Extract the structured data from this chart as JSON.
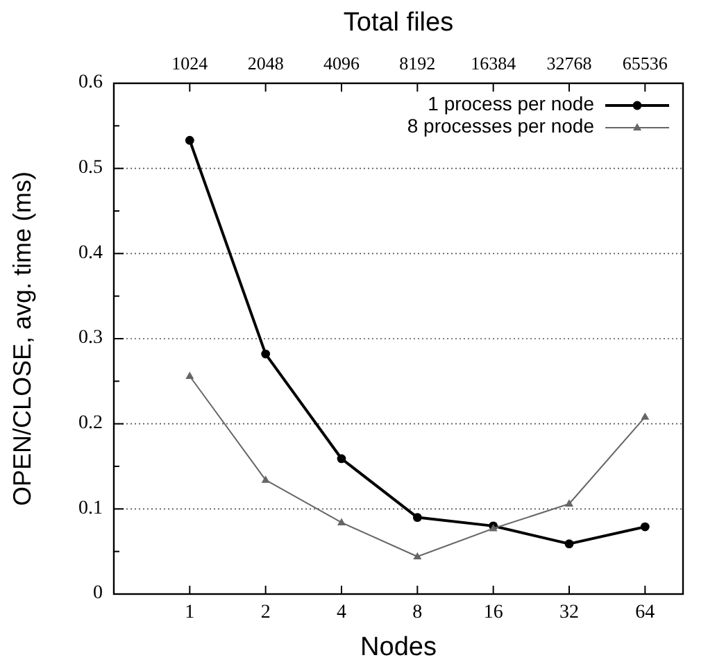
{
  "chart_data": {
    "type": "line",
    "xlabel": "Nodes",
    "ylabel": "OPEN/CLOSE, avg. time (ms)",
    "x2label": "Total files",
    "categories": [
      "1",
      "2",
      "4",
      "8",
      "16",
      "32",
      "64"
    ],
    "series": [
      {
        "name": "1 process per node",
        "color": "#000000",
        "marker": "circle",
        "values": [
          0.533,
          0.282,
          0.159,
          0.09,
          0.08,
          0.059,
          0.079
        ]
      },
      {
        "name": "8 processes per node",
        "color": "#666666",
        "marker": "triangle",
        "values": [
          0.256,
          0.134,
          0.084,
          0.044,
          0.077,
          0.106,
          0.208
        ]
      }
    ],
    "log": "x2",
    "x2lim": [
      512,
      92682
    ],
    "x2ticks": [
      1024,
      2048,
      4096,
      8192,
      16384,
      32768,
      65536
    ],
    "ylim": [
      0,
      0.6
    ],
    "yticks": [
      0,
      {
        "value": 0.05,
        "label": null
      },
      0.1,
      {
        "value": 0.15,
        "label": null
      },
      0.2,
      {
        "value": 0.25,
        "label": null
      },
      0.3,
      {
        "value": 0.35,
        "label": null
      },
      0.4,
      {
        "value": 0.45,
        "label": null
      },
      0.5,
      {
        "value": 0.55,
        "label": null
      },
      0.6
    ],
    "grid": "y",
    "legend": "top right",
    "line_style": "solid"
  }
}
